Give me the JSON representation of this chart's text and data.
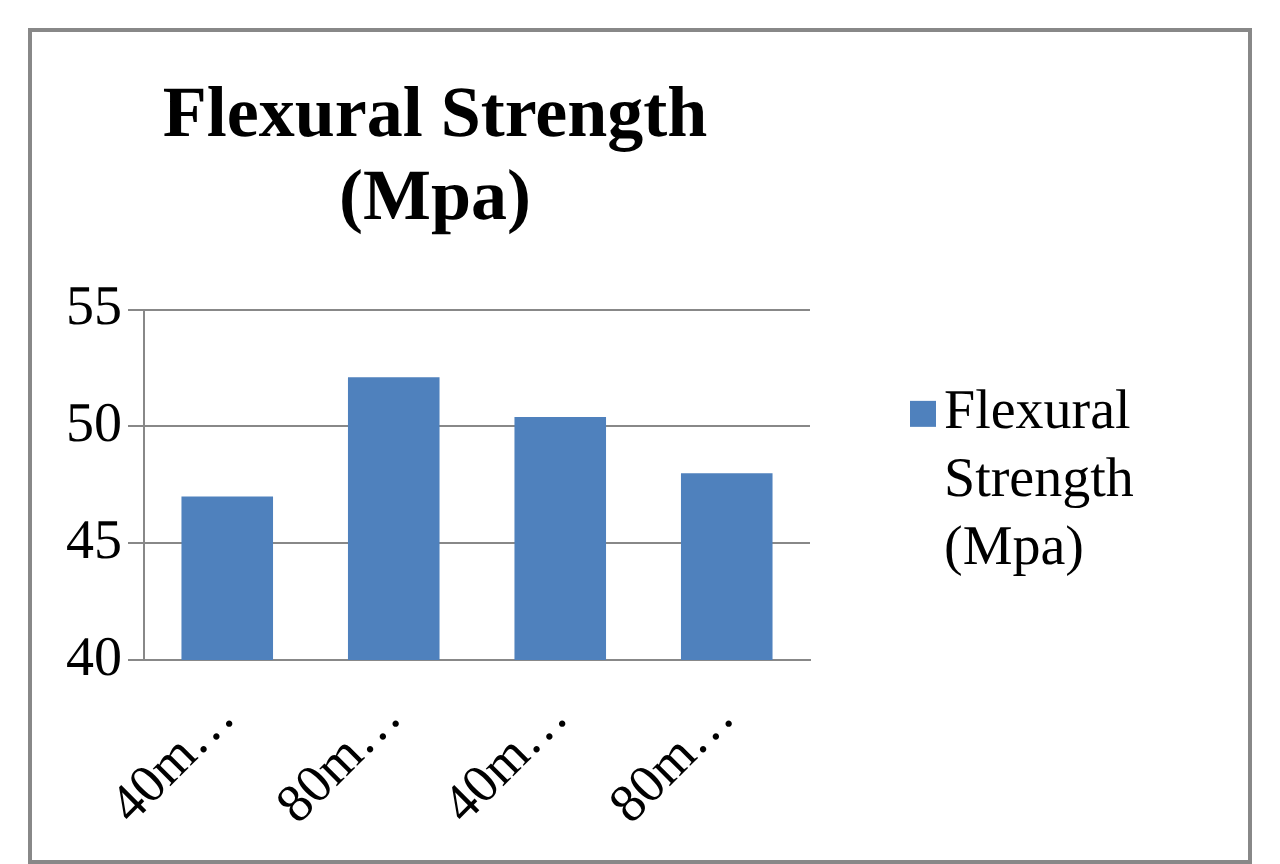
{
  "chart_data": {
    "type": "bar",
    "title": "Flexural Strength (Mpa)",
    "categories": [
      "40m…",
      "80m…",
      "40m…",
      "80m…"
    ],
    "series": [
      {
        "name": "Flexural Strength (Mpa)",
        "color": "#4f81bd",
        "values": [
          47.0,
          52.1,
          50.4,
          48.0
        ]
      }
    ],
    "ylim": [
      40,
      55
    ],
    "yticks": [
      40,
      45,
      50,
      55
    ],
    "grid": "y",
    "legend": "right"
  }
}
